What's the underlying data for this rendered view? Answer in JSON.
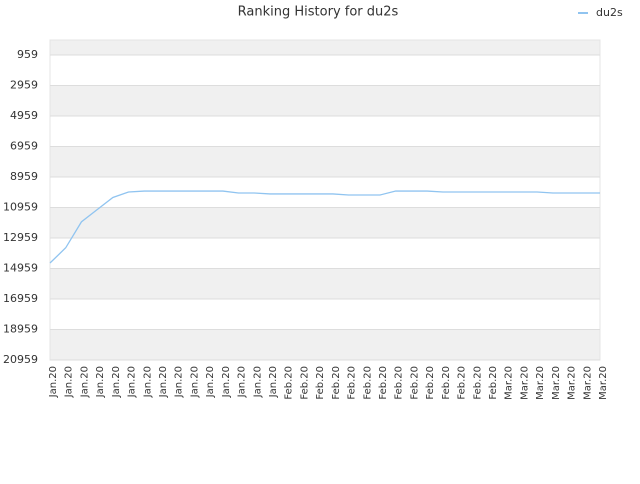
{
  "chart_data": {
    "type": "line",
    "title": "Ranking History for du2s",
    "categories": [
      "Jan.20",
      "Jan.20",
      "Jan.20",
      "Jan.20",
      "Jan.20",
      "Jan.20",
      "Jan.20",
      "Jan.20",
      "Jan.20",
      "Jan.20",
      "Jan.20",
      "Jan.20",
      "Jan.20",
      "Jan.20",
      "Jan.20",
      "Feb.20",
      "Feb.20",
      "Feb.20",
      "Feb.20",
      "Feb.20",
      "Feb.20",
      "Feb.20",
      "Feb.20",
      "Feb.20",
      "Feb.20",
      "Feb.20",
      "Feb.20",
      "Feb.20",
      "Feb.20",
      "Mar.20",
      "Mar.20",
      "Mar.20",
      "Mar.20",
      "Mar.20",
      "Mar.20",
      "Mar.20"
    ],
    "series": [
      {
        "name": "du2s",
        "color": "#90c4f0",
        "values": [
          14600,
          13600,
          11900,
          11100,
          10300,
          9940,
          9880,
          9880,
          9880,
          9880,
          9880,
          9880,
          10010,
          10010,
          10070,
          10070,
          10070,
          10070,
          10070,
          10140,
          10140,
          10140,
          9880,
          9880,
          9880,
          9940,
          9940,
          9940,
          9940,
          9940,
          9940,
          9940,
          10010,
          10010,
          10010,
          10010
        ]
      }
    ],
    "ylim": [
      20959,
      -25
    ],
    "yticks": [
      959,
      2959,
      4959,
      6959,
      8959,
      10959,
      12959,
      14959,
      16959,
      18959,
      20959
    ],
    "grid": true,
    "legend": "top-right"
  }
}
